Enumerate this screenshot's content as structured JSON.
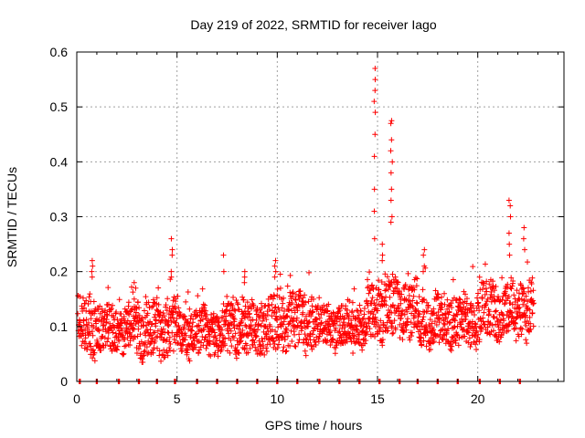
{
  "chart_data": {
    "type": "scatter",
    "title": "Day 219 of 2022, SRMTID for receiver Iago",
    "xlabel": "GPS time / hours",
    "ylabel": "SRMTID / TECUs",
    "xlim": [
      0,
      24.3
    ],
    "ylim": [
      0,
      0.6
    ],
    "xticks": [
      0,
      5,
      10,
      15,
      20
    ],
    "yticks": [
      0,
      0.1,
      0.2,
      0.3,
      0.4,
      0.5,
      0.6
    ],
    "ytick_labels": [
      "0",
      "0.1",
      "0.2",
      "0.3",
      "0.4",
      "0.5",
      "0.6"
    ],
    "grid": true,
    "marker": "+",
    "marker_color": "#ff0000",
    "series": [
      {
        "name": "SRMTID",
        "segments": [
          {
            "t0": 0.05,
            "t1": 1.2,
            "base": 0.1,
            "amp": 0.05
          },
          {
            "t0": 1.2,
            "t1": 3.0,
            "base": 0.095,
            "amp": 0.04
          },
          {
            "t0": 3.0,
            "t1": 5.0,
            "base": 0.095,
            "amp": 0.05
          },
          {
            "t0": 5.0,
            "t1": 7.5,
            "base": 0.09,
            "amp": 0.04
          },
          {
            "t0": 7.5,
            "t1": 10.0,
            "base": 0.1,
            "amp": 0.05
          },
          {
            "t0": 10.0,
            "t1": 12.0,
            "base": 0.11,
            "amp": 0.05
          },
          {
            "t0": 12.0,
            "t1": 14.5,
            "base": 0.1,
            "amp": 0.04
          },
          {
            "t0": 14.5,
            "t1": 17.0,
            "base": 0.13,
            "amp": 0.05
          },
          {
            "t0": 17.0,
            "t1": 20.0,
            "base": 0.11,
            "amp": 0.045
          },
          {
            "t0": 20.0,
            "t1": 22.8,
            "base": 0.13,
            "amp": 0.05
          }
        ],
        "spikes": [
          {
            "t": 0.75,
            "values": [
              0.2,
              0.21,
              0.22,
              0.19
            ]
          },
          {
            "t": 2.9,
            "values": [
              0.17,
              0.18,
              0.15
            ]
          },
          {
            "t": 4.75,
            "values": [
              0.26,
              0.24,
              0.23,
              0.2,
              0.19
            ]
          },
          {
            "t": 7.3,
            "values": [
              0.23,
              0.2
            ]
          },
          {
            "t": 8.4,
            "values": [
              0.2,
              0.19,
              0.18
            ]
          },
          {
            "t": 9.9,
            "values": [
              0.22,
              0.21,
              0.2,
              0.19
            ]
          },
          {
            "t": 14.85,
            "values": [
              0.57,
              0.55,
              0.53,
              0.51,
              0.49,
              0.45,
              0.41,
              0.35,
              0.31,
              0.26
            ]
          },
          {
            "t": 15.25,
            "values": [
              0.25,
              0.23,
              0.22
            ]
          },
          {
            "t": 15.7,
            "values": [
              0.475,
              0.47,
              0.44,
              0.42,
              0.4,
              0.38,
              0.35,
              0.33,
              0.3,
              0.29
            ]
          },
          {
            "t": 17.3,
            "values": [
              0.24,
              0.23,
              0.21,
              0.2
            ]
          },
          {
            "t": 21.6,
            "values": [
              0.33,
              0.32,
              0.3,
              0.27,
              0.25,
              0.23
            ]
          },
          {
            "t": 22.3,
            "values": [
              0.28,
              0.26,
              0.24
            ]
          }
        ],
        "zero_values_at": [
          0.15,
          1.0,
          2.1,
          3.1,
          4.0,
          4.9,
          6.0,
          7.0,
          8.0,
          9.0,
          10.0,
          11.0,
          12.1,
          13.1,
          14.1,
          15.1,
          16.1,
          17.0,
          18.0,
          19.0,
          20.1,
          21.1,
          22.1
        ]
      }
    ]
  }
}
